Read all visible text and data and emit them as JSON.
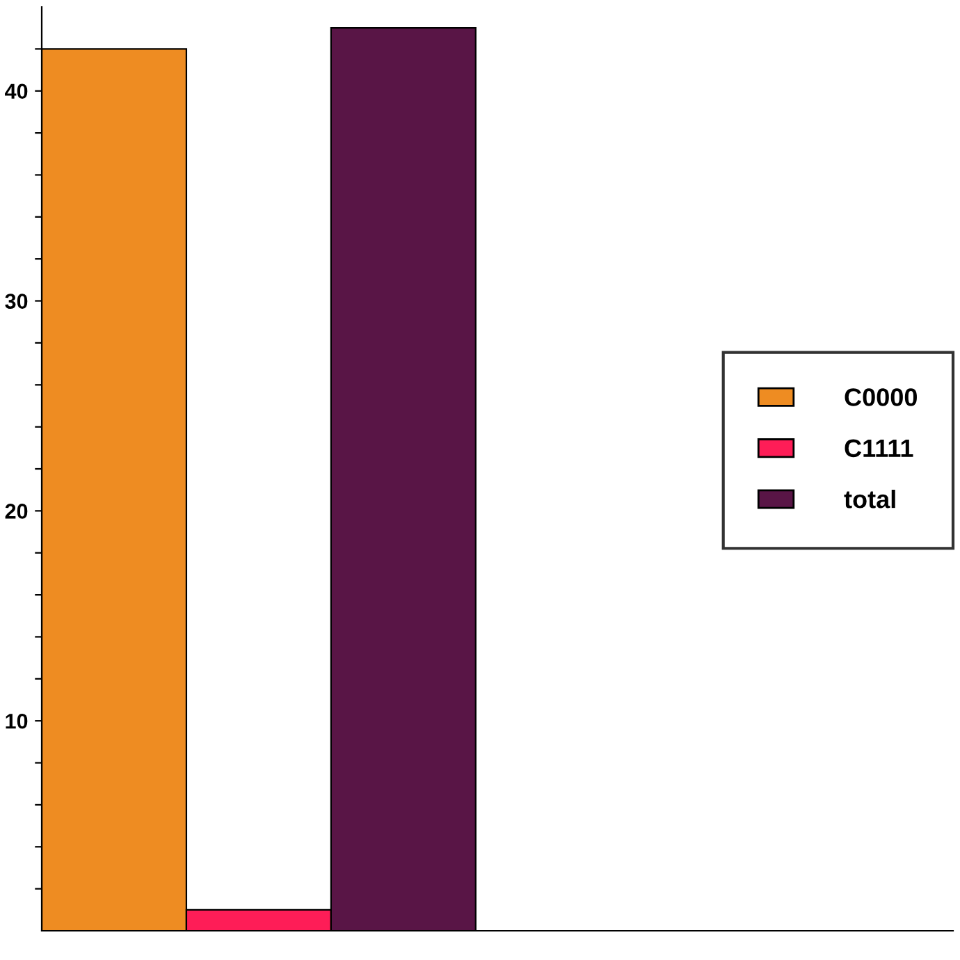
{
  "chart_data": {
    "type": "bar",
    "categories": [
      null
    ],
    "series": [
      {
        "name": "C0000",
        "color": "#ee8c22",
        "values": [
          42
        ]
      },
      {
        "name": "C1111",
        "color": "#fe1d57",
        "values": [
          1
        ]
      },
      {
        "name": "total",
        "color": "#591546",
        "values": [
          43
        ]
      }
    ],
    "ylim": [
      0,
      44
    ],
    "yticks": [
      {
        "value": 2,
        "label": null
      },
      {
        "value": 4,
        "label": null
      },
      {
        "value": 6,
        "label": null
      },
      {
        "value": 8,
        "label": null
      },
      10,
      {
        "value": 12,
        "label": null
      },
      {
        "value": 14,
        "label": null
      },
      {
        "value": 16,
        "label": null
      },
      {
        "value": 18,
        "label": null
      },
      20,
      {
        "value": 22,
        "label": null
      },
      {
        "value": 24,
        "label": null
      },
      {
        "value": 26,
        "label": null
      },
      {
        "value": 28,
        "label": null
      },
      30,
      {
        "value": 32,
        "label": null
      },
      {
        "value": 34,
        "label": null
      },
      {
        "value": 36,
        "label": null
      },
      {
        "value": 38,
        "label": null
      },
      40,
      {
        "value": 42,
        "label": null
      }
    ],
    "tick_labels": "y",
    "grid": false,
    "legend": "right"
  }
}
